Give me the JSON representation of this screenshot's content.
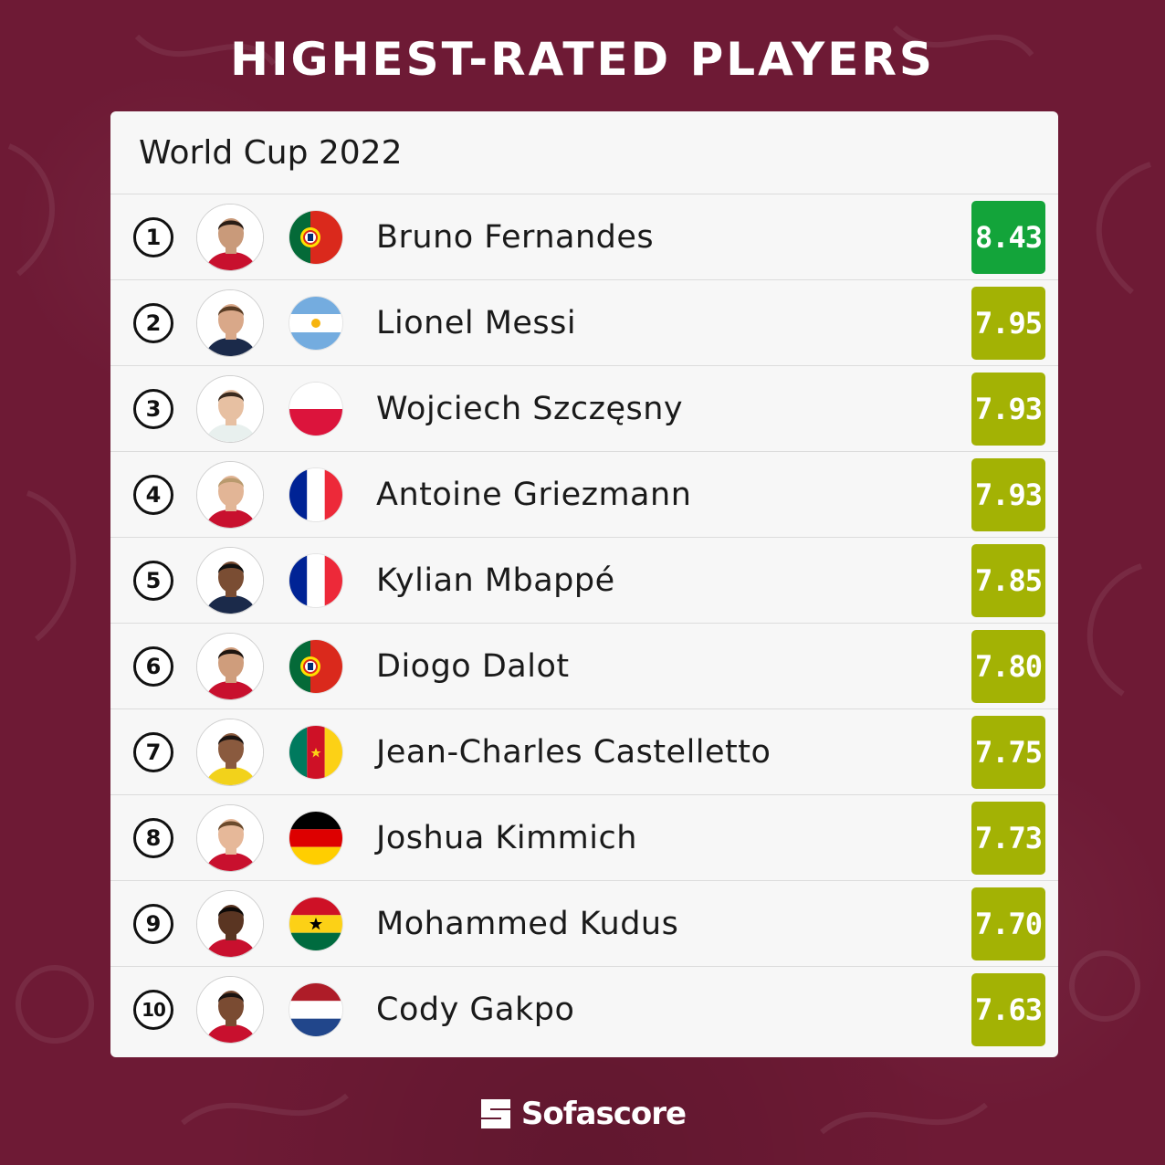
{
  "headline": "HIGHEST-RATED PLAYERS",
  "card": {
    "title": "World Cup 2022"
  },
  "players": [
    {
      "rank": "1",
      "name": "Bruno Fernandes",
      "flag": "portugal",
      "rating": "8.43",
      "rating_color": "#13a43a"
    },
    {
      "rank": "2",
      "name": "Lionel Messi",
      "flag": "argentina",
      "rating": "7.95",
      "rating_color": "#a3b204"
    },
    {
      "rank": "3",
      "name": "Wojciech Szczęsny",
      "flag": "poland",
      "rating": "7.93",
      "rating_color": "#a3b204"
    },
    {
      "rank": "4",
      "name": "Antoine Griezmann",
      "flag": "france",
      "rating": "7.93",
      "rating_color": "#a3b204"
    },
    {
      "rank": "5",
      "name": "Kylian Mbappé",
      "flag": "france",
      "rating": "7.85",
      "rating_color": "#a3b204"
    },
    {
      "rank": "6",
      "name": "Diogo Dalot",
      "flag": "portugal",
      "rating": "7.80",
      "rating_color": "#a3b204"
    },
    {
      "rank": "7",
      "name": "Jean-Charles Castelletto",
      "flag": "cameroon",
      "rating": "7.75",
      "rating_color": "#a3b204"
    },
    {
      "rank": "8",
      "name": "Joshua Kimmich",
      "flag": "germany",
      "rating": "7.73",
      "rating_color": "#a3b204"
    },
    {
      "rank": "9",
      "name": "Mohammed Kudus",
      "flag": "ghana",
      "rating": "7.70",
      "rating_color": "#a3b204"
    },
    {
      "rank": "10",
      "name": "Cody Gakpo",
      "flag": "netherlands",
      "rating": "7.63",
      "rating_color": "#a3b204"
    }
  ],
  "footer": {
    "brand": "Sofascore",
    "logo_icon": "sofascore-logo-icon"
  },
  "colors": {
    "background": "#6e1a35",
    "card": "#f7f7f7",
    "top_rating": "#13a43a",
    "rating": "#a3b204"
  }
}
